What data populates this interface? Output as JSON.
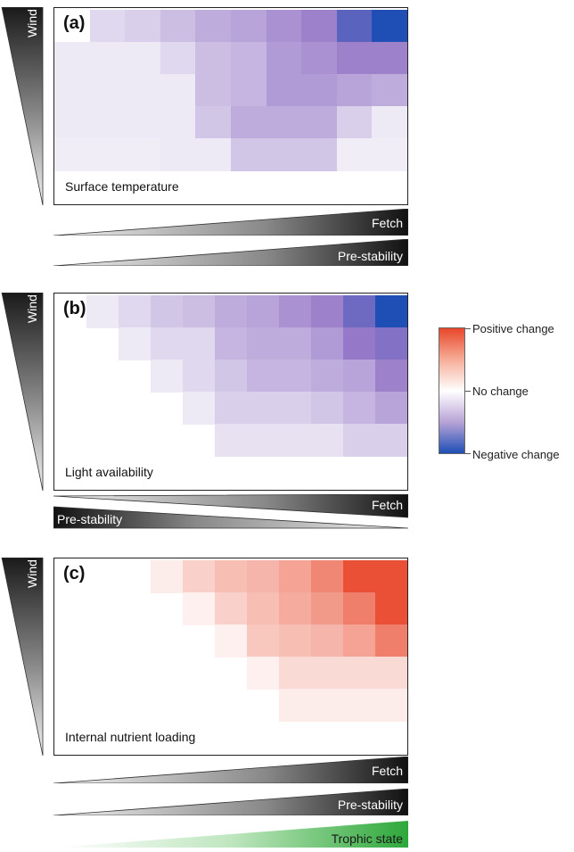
{
  "panels": [
    {
      "id": "a",
      "label": "(a)",
      "name": "Surface temperature",
      "wedge_label": "Wind",
      "ramps": [
        {
          "label": "Fetch",
          "direction": "increasing",
          "color": "dark"
        },
        {
          "label": "Pre-stability",
          "direction": "increasing",
          "color": "dark"
        }
      ],
      "rows": [
        [
          0.0,
          -0.15,
          -0.2,
          -0.3,
          -0.4,
          -0.45,
          -0.55,
          -0.65,
          -0.85,
          -1.0
        ],
        [
          -0.05,
          -0.05,
          -0.05,
          -0.15,
          -0.3,
          -0.35,
          -0.5,
          -0.55,
          -0.65,
          -0.65
        ],
        [
          -0.05,
          -0.05,
          -0.05,
          -0.05,
          -0.3,
          -0.35,
          -0.5,
          -0.5,
          -0.45,
          -0.4
        ],
        [
          -0.05,
          -0.05,
          -0.05,
          -0.05,
          -0.25,
          -0.4,
          -0.4,
          -0.4,
          -0.2,
          -0.05
        ],
        [
          -0.03,
          -0.03,
          -0.03,
          -0.05,
          -0.05,
          -0.25,
          -0.25,
          -0.25,
          -0.03,
          -0.03
        ]
      ]
    },
    {
      "id": "b",
      "label": "(b)",
      "name": "Light availability",
      "wedge_label": "Wind",
      "ramps": [
        {
          "label": "Fetch",
          "direction": "increasing",
          "color": "dark"
        },
        {
          "label": "Pre-stability",
          "direction": "decreasing",
          "color": "dark"
        }
      ],
      "rows": [
        [
          0.0,
          -0.05,
          -0.15,
          -0.25,
          -0.3,
          -0.4,
          -0.45,
          -0.55,
          -0.65,
          -0.8,
          -1.0
        ],
        [
          null,
          null,
          -0.05,
          -0.15,
          -0.15,
          -0.35,
          -0.4,
          -0.4,
          -0.5,
          -0.7,
          -0.75
        ],
        [
          null,
          null,
          null,
          -0.05,
          -0.15,
          -0.25,
          -0.35,
          -0.35,
          -0.4,
          -0.45,
          -0.65
        ],
        [
          null,
          null,
          null,
          null,
          -0.05,
          -0.2,
          -0.2,
          -0.2,
          -0.25,
          -0.35,
          -0.45
        ],
        [
          null,
          null,
          null,
          null,
          null,
          -0.1,
          -0.1,
          -0.1,
          -0.1,
          -0.2,
          -0.2
        ]
      ]
    },
    {
      "id": "c",
      "label": "(c)",
      "name": "Internal nutrient loading",
      "wedge_label": "Wind",
      "ramps": [
        {
          "label": "Fetch",
          "direction": "increasing",
          "color": "dark"
        },
        {
          "label": "Pre-stability",
          "direction": "increasing",
          "color": "dark"
        },
        {
          "label": "Trophic state",
          "direction": "increasing",
          "color": "green"
        }
      ],
      "rows": [
        [
          null,
          null,
          null,
          0.1,
          0.25,
          0.35,
          0.4,
          0.5,
          0.65,
          0.95,
          0.95
        ],
        [
          null,
          null,
          null,
          null,
          0.08,
          0.25,
          0.35,
          0.45,
          0.55,
          0.7,
          0.95
        ],
        [
          null,
          null,
          null,
          null,
          null,
          0.08,
          0.3,
          0.35,
          0.4,
          0.5,
          0.7
        ],
        [
          null,
          null,
          null,
          null,
          null,
          null,
          0.08,
          0.2,
          0.2,
          0.2,
          0.2
        ],
        [
          null,
          null,
          null,
          null,
          null,
          null,
          null,
          0.1,
          0.1,
          0.1,
          0.1
        ]
      ]
    }
  ],
  "legend": {
    "positive": "Positive change",
    "neutral": "No change",
    "negative": "Negative change",
    "colors": {
      "positive": "#e8472a",
      "neutral": "#ffffff",
      "negative": "#1f4fb5"
    }
  }
}
